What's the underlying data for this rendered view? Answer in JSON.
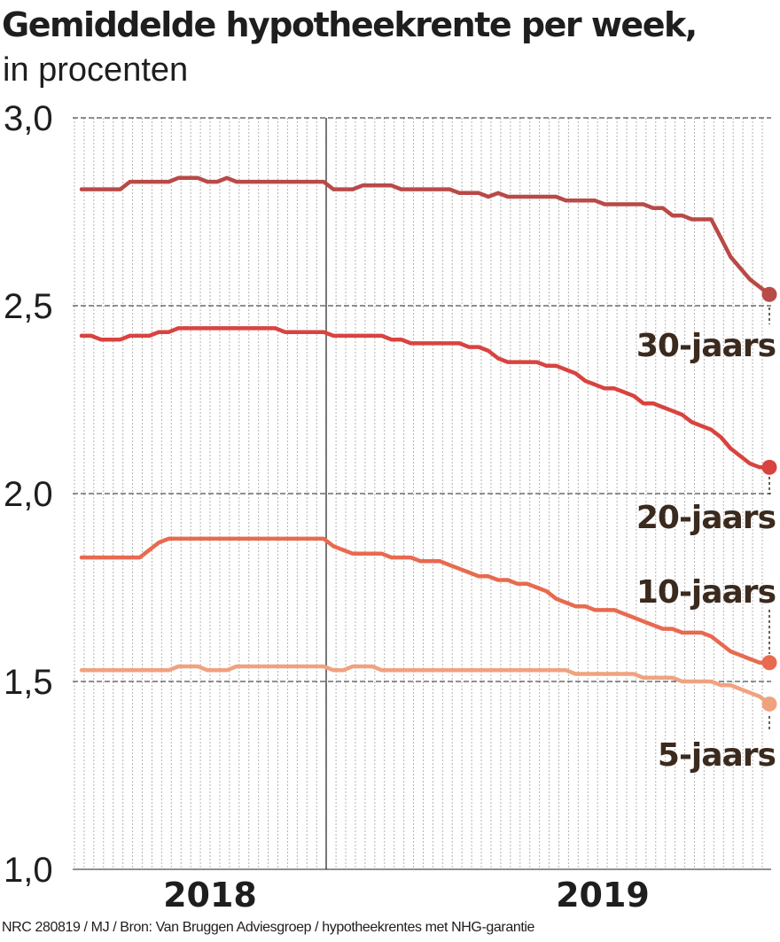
{
  "title": "Gemiddelde hypotheekrente per week,",
  "subtitle": "in procenten",
  "footer": "NRC 280819 / MJ / Bron:  Van Bruggen Adviesgroep / hypotheekrentes met NHG-garantie",
  "chart_data": {
    "type": "line",
    "ylim": [
      1.0,
      3.0
    ],
    "yticks": [
      "3,0",
      "2,5",
      "2,0",
      "1,5",
      "1,0"
    ],
    "ytick_values": [
      3.0,
      2.5,
      2.0,
      1.5,
      1.0
    ],
    "xlabels": [
      "2018",
      "2019"
    ],
    "grid": "vertical weekly lines",
    "x_weeks": 72,
    "series": [
      {
        "name": "30-jaars",
        "color": "#b84a47",
        "values": [
          2.81,
          2.81,
          2.81,
          2.81,
          2.81,
          2.83,
          2.83,
          2.83,
          2.83,
          2.83,
          2.84,
          2.84,
          2.84,
          2.83,
          2.83,
          2.84,
          2.83,
          2.83,
          2.83,
          2.83,
          2.83,
          2.83,
          2.83,
          2.83,
          2.83,
          2.83,
          2.81,
          2.81,
          2.81,
          2.82,
          2.82,
          2.82,
          2.82,
          2.81,
          2.81,
          2.81,
          2.81,
          2.81,
          2.81,
          2.8,
          2.8,
          2.8,
          2.79,
          2.8,
          2.79,
          2.79,
          2.79,
          2.79,
          2.79,
          2.79,
          2.78,
          2.78,
          2.78,
          2.78,
          2.77,
          2.77,
          2.77,
          2.77,
          2.77,
          2.76,
          2.76,
          2.74,
          2.74,
          2.73,
          2.73,
          2.73,
          2.68,
          2.63,
          2.6,
          2.57,
          2.55,
          2.53
        ]
      },
      {
        "name": "20-jaars",
        "color": "#d9433f",
        "values": [
          2.42,
          2.42,
          2.41,
          2.41,
          2.41,
          2.42,
          2.42,
          2.42,
          2.43,
          2.43,
          2.44,
          2.44,
          2.44,
          2.44,
          2.44,
          2.44,
          2.44,
          2.44,
          2.44,
          2.44,
          2.44,
          2.43,
          2.43,
          2.43,
          2.43,
          2.43,
          2.42,
          2.42,
          2.42,
          2.42,
          2.42,
          2.42,
          2.41,
          2.41,
          2.4,
          2.4,
          2.4,
          2.4,
          2.4,
          2.4,
          2.39,
          2.39,
          2.38,
          2.36,
          2.35,
          2.35,
          2.35,
          2.35,
          2.34,
          2.34,
          2.33,
          2.32,
          2.3,
          2.29,
          2.28,
          2.28,
          2.27,
          2.26,
          2.24,
          2.24,
          2.23,
          2.22,
          2.21,
          2.19,
          2.18,
          2.17,
          2.15,
          2.12,
          2.1,
          2.08,
          2.07,
          2.07
        ]
      },
      {
        "name": "10-jaars",
        "color": "#e86a4f",
        "values": [
          1.83,
          1.83,
          1.83,
          1.83,
          1.83,
          1.83,
          1.83,
          1.85,
          1.87,
          1.88,
          1.88,
          1.88,
          1.88,
          1.88,
          1.88,
          1.88,
          1.88,
          1.88,
          1.88,
          1.88,
          1.88,
          1.88,
          1.88,
          1.88,
          1.88,
          1.88,
          1.86,
          1.85,
          1.84,
          1.84,
          1.84,
          1.84,
          1.83,
          1.83,
          1.83,
          1.82,
          1.82,
          1.82,
          1.81,
          1.8,
          1.79,
          1.78,
          1.78,
          1.77,
          1.77,
          1.76,
          1.76,
          1.75,
          1.74,
          1.72,
          1.71,
          1.7,
          1.7,
          1.69,
          1.69,
          1.69,
          1.68,
          1.67,
          1.66,
          1.65,
          1.64,
          1.64,
          1.63,
          1.63,
          1.63,
          1.62,
          1.6,
          1.58,
          1.57,
          1.56,
          1.55,
          1.55
        ]
      },
      {
        "name": "5-jaars",
        "color": "#f0a280",
        "values": [
          1.53,
          1.53,
          1.53,
          1.53,
          1.53,
          1.53,
          1.53,
          1.53,
          1.53,
          1.53,
          1.54,
          1.54,
          1.54,
          1.53,
          1.53,
          1.53,
          1.54,
          1.54,
          1.54,
          1.54,
          1.54,
          1.54,
          1.54,
          1.54,
          1.54,
          1.54,
          1.53,
          1.53,
          1.54,
          1.54,
          1.54,
          1.53,
          1.53,
          1.53,
          1.53,
          1.53,
          1.53,
          1.53,
          1.53,
          1.53,
          1.53,
          1.53,
          1.53,
          1.53,
          1.53,
          1.53,
          1.53,
          1.53,
          1.53,
          1.53,
          1.53,
          1.52,
          1.52,
          1.52,
          1.52,
          1.52,
          1.52,
          1.52,
          1.51,
          1.51,
          1.51,
          1.51,
          1.5,
          1.5,
          1.5,
          1.5,
          1.49,
          1.49,
          1.48,
          1.47,
          1.46,
          1.44
        ]
      }
    ]
  }
}
